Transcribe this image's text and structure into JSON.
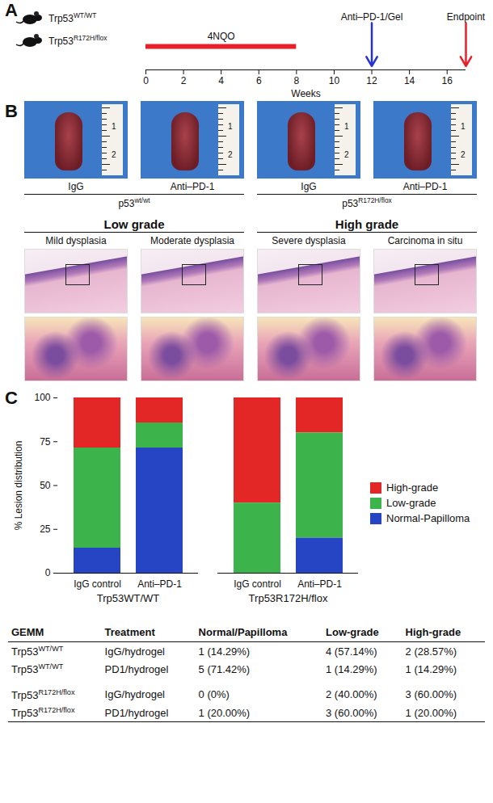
{
  "panel_labels": [
    "A",
    "B",
    "C"
  ],
  "panel_a": {
    "genotypes": [
      {
        "text": "Trp53",
        "sup": "WT/WT"
      },
      {
        "text": "Trp53",
        "sup": "R172H/flox"
      }
    ],
    "timeline": {
      "xlim": [
        0,
        17
      ],
      "xticks": [
        0,
        2,
        4,
        6,
        8,
        10,
        12,
        14,
        16
      ],
      "xlabel": "Weeks",
      "exposure": {
        "label": "4NQO",
        "start": 0,
        "end": 8,
        "color": "#e8202a"
      },
      "events": [
        {
          "label": "Anti–PD-1/Gel",
          "week": 12,
          "color": "#2432d8"
        },
        {
          "label": "Endpoint",
          "week": 17,
          "color": "#e8202a"
        }
      ]
    }
  },
  "panel_b": {
    "photos": {
      "treatments": [
        "IgG",
        "Anti–PD-1",
        "IgG",
        "Anti–PD-1"
      ],
      "groups": [
        {
          "text": "p53",
          "sup": "wt/wt"
        },
        {
          "text": "p53",
          "sup": "R172H/flox"
        }
      ],
      "ruler_labels": [
        "1",
        "2"
      ]
    },
    "histology": {
      "grades": [
        {
          "label": "Low grade",
          "stages": [
            "Mild dysplasia",
            "Moderate dysplasia"
          ]
        },
        {
          "label": "High grade",
          "stages": [
            "Severe dysplasia",
            "Carcinoma in situ"
          ]
        }
      ]
    }
  },
  "chart_data": {
    "type": "bar",
    "stacked": true,
    "categories": [
      "IgG control",
      "Anti–PD-1",
      "IgG control",
      "Anti–PD-1"
    ],
    "groups": [
      "Trp53WT/WT",
      "Trp53WT/WT",
      "Trp53R172H/flox",
      "Trp53R172H/flox"
    ],
    "series": [
      {
        "name": "High-grade",
        "color": "#e32626",
        "values": [
          28.57,
          14.29,
          60,
          20
        ]
      },
      {
        "name": "Low-grade",
        "color": "#3cb44b",
        "values": [
          57.14,
          14.29,
          40,
          60
        ]
      },
      {
        "name": "Normal-Papilloma",
        "color": "#2645c4",
        "values": [
          14.29,
          71.42,
          0,
          20
        ]
      }
    ],
    "ylim": [
      0,
      100
    ],
    "yticks": [
      0,
      25,
      50,
      75,
      100
    ],
    "ylabel": "% Lesion distribution",
    "legend": "right"
  },
  "table": {
    "header": [
      "GEMM",
      "Treatment",
      "Normal/Papilloma",
      "Low-grade",
      "High-grade"
    ],
    "rows": [
      [
        {
          "text": "Trp53",
          "sup": "WT/WT"
        },
        "IgG/hydrogel",
        "1 (14.29%)",
        "4 (57.14%)",
        "2 (28.57%)"
      ],
      [
        {
          "text": "Trp53",
          "sup": "WT/WT"
        },
        "PD1/hydrogel",
        "5 (71.42%)",
        "1 (14.29%)",
        "1 (14.29%)"
      ],
      [
        {
          "text": "Trp53",
          "sup": "R172H/flox"
        },
        "IgG/hydrogel",
        "0 (0%)",
        "2 (40.00%)",
        "3 (60.00%)"
      ],
      [
        {
          "text": "Trp53",
          "sup": "R172H/flox"
        },
        "PD1/hydrogel",
        "1 (20.00%)",
        "3 (60.00%)",
        "1 (20.00%)"
      ]
    ]
  }
}
